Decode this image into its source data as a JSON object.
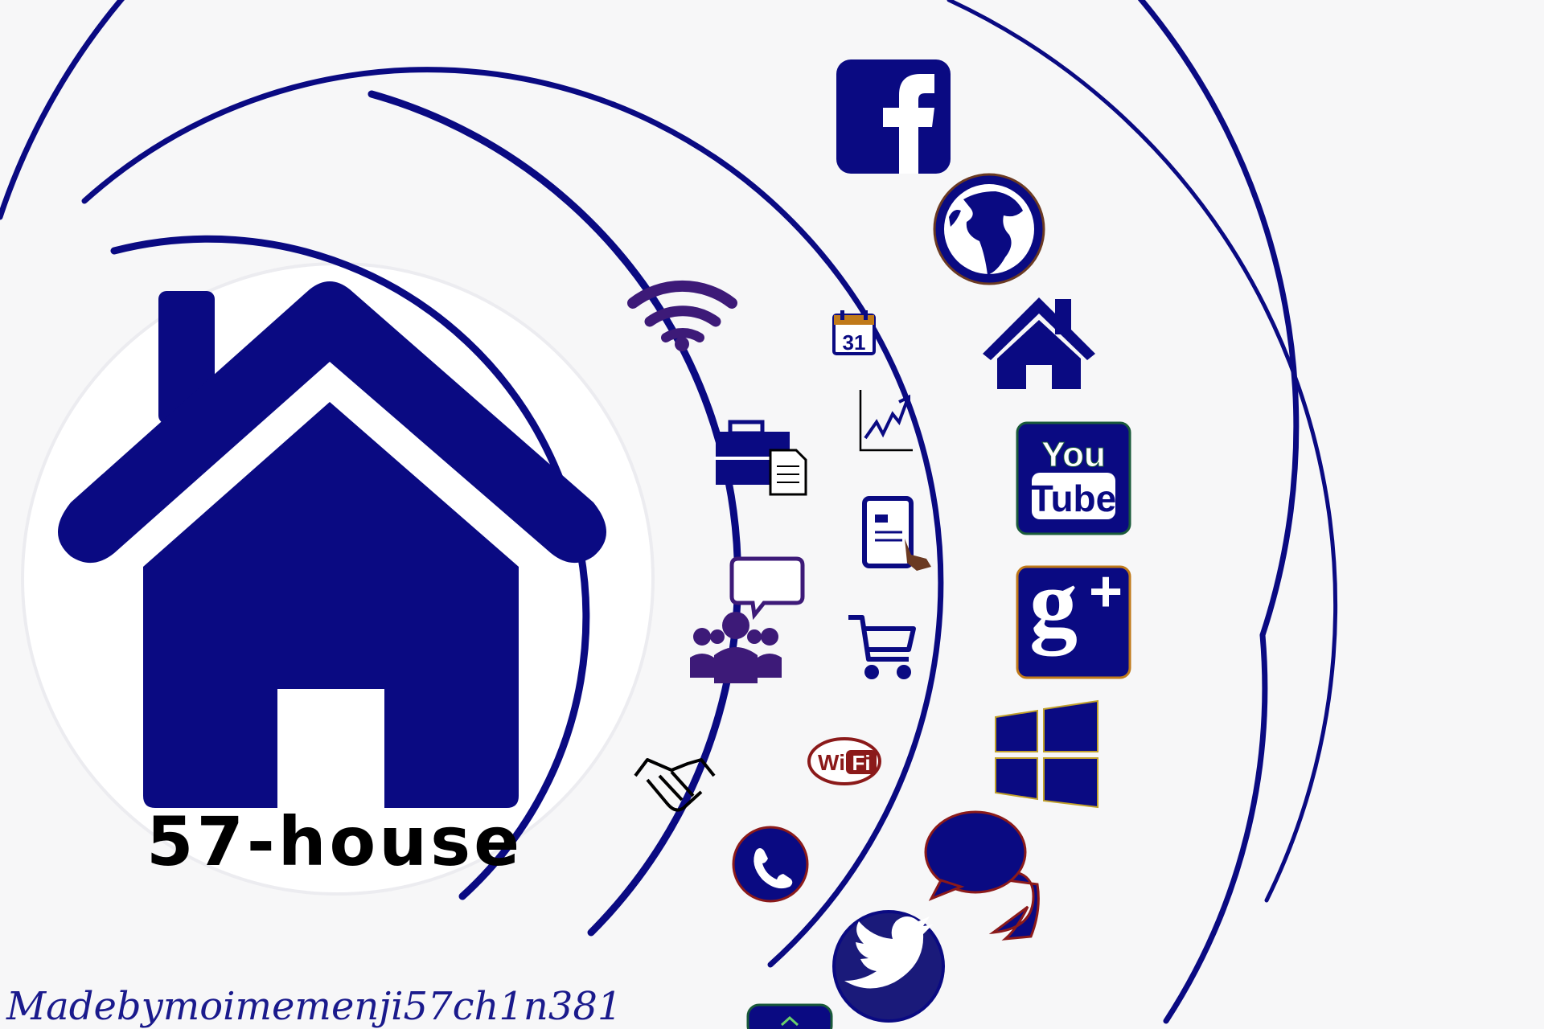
{
  "title": "57-house",
  "credit": "Madebymoimemenji57ch1n381",
  "colors": {
    "primary": "#0a0a82",
    "background": "#f7f7f8",
    "circle": "#ffffff",
    "wifi_badge": "#8b1a1a",
    "twitter": "#1a1a7a"
  },
  "icons": [
    "house-icon",
    "wifi-signal-icon",
    "briefcase-document-icon",
    "team-chat-icon",
    "handshake-icon",
    "calendar-icon",
    "growth-chart-icon",
    "tablet-touch-icon",
    "shopping-cart-icon",
    "wifi-badge-icon",
    "phone-icon",
    "facebook-icon",
    "globe-icon",
    "small-house-icon",
    "youtube-icon",
    "google-plus-icon",
    "windows-icon",
    "speech-bubbles-icon",
    "twitter-icon",
    "partial-icon"
  ],
  "calendar_day": "31",
  "wifi_badge": {
    "wi": "Wi",
    "fi": "Fi"
  },
  "youtube": {
    "line1": "You",
    "line2": "Tube"
  }
}
